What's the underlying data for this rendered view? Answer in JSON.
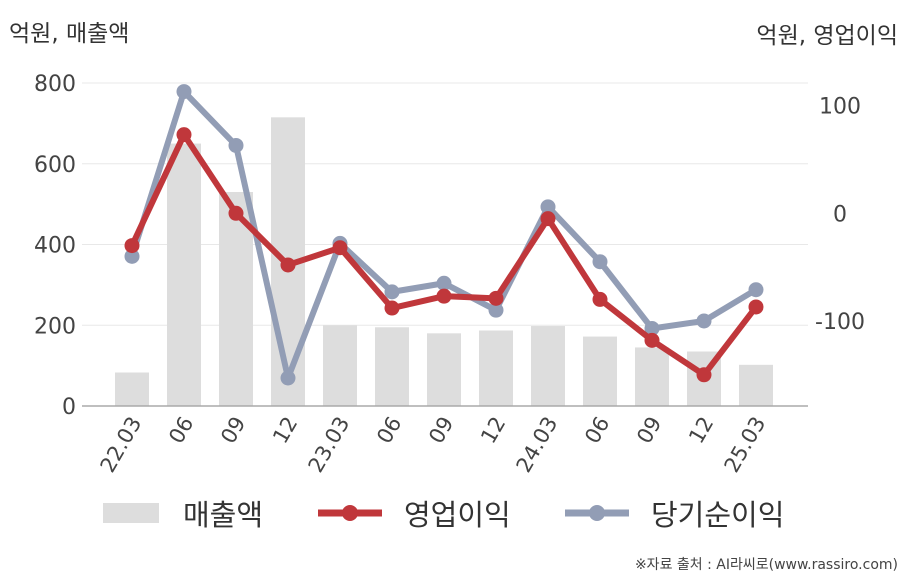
{
  "chart_data": {
    "type": "bar+line",
    "units": {
      "left": "억원, 매출액",
      "right": "억원, 영업이익"
    },
    "categories": [
      "22.03",
      "06",
      "09",
      "12",
      "23.03",
      "06",
      "09",
      "12",
      "24.03",
      "06",
      "09",
      "12",
      "25.03"
    ],
    "bar_series": {
      "name": "매출액",
      "axis": "left",
      "color": "#dddddd",
      "values": [
        83,
        650,
        530,
        715,
        200,
        195,
        180,
        187,
        198,
        172,
        145,
        135,
        102
      ]
    },
    "line_series": [
      {
        "name": "영업이익",
        "axis": "right",
        "color": "#c0373b",
        "values": [
          -30,
          73,
          0,
          -48,
          -32,
          -88,
          -77,
          -79,
          -5,
          -80,
          -118,
          -150,
          -87
        ]
      },
      {
        "name": "당기순이익",
        "axis": "right",
        "color": "#929db5",
        "values": [
          -40,
          113,
          63,
          -153,
          -28,
          -73,
          -65,
          -90,
          6,
          -45,
          -107,
          -100,
          -71
        ]
      }
    ],
    "left_axis": {
      "ylim": [
        0,
        800
      ],
      "ticks": [
        0,
        200,
        400,
        600,
        800
      ]
    },
    "right_axis": {
      "ylim": [
        -179,
        121
      ],
      "ticks": [
        -100,
        0,
        100
      ]
    },
    "grid": true,
    "legend_position": "bottom"
  },
  "legend": {
    "revenue": "매출액",
    "operating_profit": "영업이익",
    "net_income": "당기순이익"
  },
  "source": "※자료 출처 : AI라씨로(www.rassiro.com)"
}
